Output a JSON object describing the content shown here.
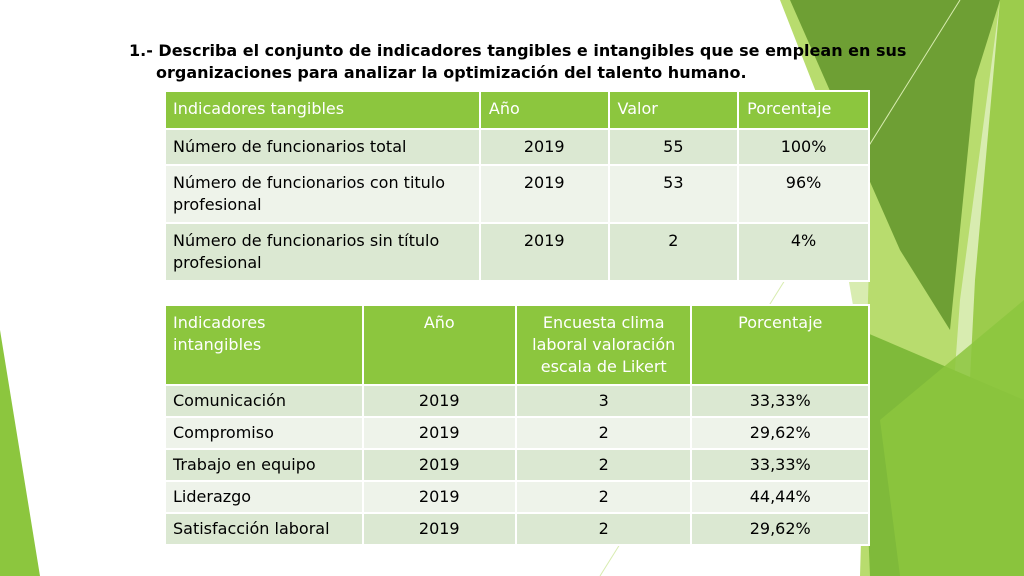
{
  "slide": {
    "title_line1": "1.- Describa el conjunto de indicadores tangibles e intangibles que se emplean en sus",
    "title_line2": "organizaciones para analizar la optimización del talento humano."
  },
  "colors": {
    "header_green": "#8cc63e",
    "row_odd": "#dbe8d2",
    "row_even": "#eef3ea",
    "decor_green_dark": "#5a8a2a",
    "decor_green_light": "#b8dc6e"
  },
  "tangibles": {
    "headers": [
      "Indicadores tangibles",
      "Año",
      "Valor",
      "Porcentaje"
    ],
    "rows": [
      [
        "Número de funcionarios total",
        "2019",
        "55",
        "100%"
      ],
      [
        "Número de funcionarios con titulo profesional",
        "2019",
        "53",
        "96%"
      ],
      [
        "Número de funcionarios sin título profesional",
        "2019",
        "2",
        "4%"
      ]
    ]
  },
  "intangibles": {
    "headers": [
      "Indicadores intangibles",
      "Año",
      "Encuesta clima laboral valoración escala de Likert",
      "Porcentaje"
    ],
    "rows": [
      [
        "Comunicación",
        "2019",
        "3",
        "33,33%"
      ],
      [
        "Compromiso",
        "2019",
        "2",
        "29,62%"
      ],
      [
        "Trabajo en equipo",
        "2019",
        "2",
        "33,33%"
      ],
      [
        "Liderazgo",
        "2019",
        "2",
        "44,44%"
      ],
      [
        "Satisfacción laboral",
        "2019",
        "2",
        "29,62%"
      ]
    ]
  }
}
